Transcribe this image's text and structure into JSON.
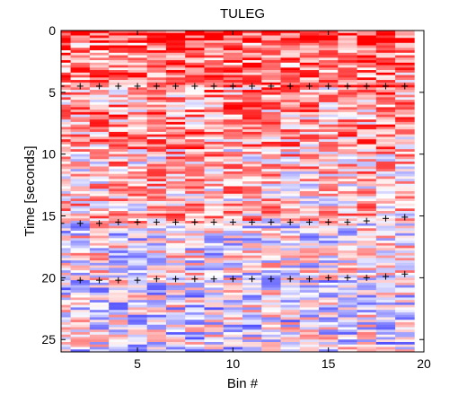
{
  "chart_data": {
    "type": "heatmap",
    "title": "TULEG",
    "xlabel": "Bin #",
    "ylabel": "Time [seconds]",
    "xlim": [
      1,
      20
    ],
    "ylim": [
      0,
      26
    ],
    "y_reversed": true,
    "x_ticks": [
      "5",
      "10",
      "15",
      "20"
    ],
    "x_tick_values": [
      5,
      10,
      15,
      20
    ],
    "y_ticks": [
      "0",
      "5",
      "10",
      "15",
      "20",
      "25"
    ],
    "y_tick_values": [
      0,
      5,
      10,
      15,
      20,
      25
    ],
    "colormap": {
      "negative": "#0000ff",
      "zero": "#ffffff",
      "positive": "#ff0000"
    },
    "bins": [
      1,
      2,
      3,
      4,
      5,
      6,
      7,
      8,
      9,
      10,
      11,
      12,
      13,
      14,
      15,
      16,
      17,
      18,
      19
    ],
    "column_mean_profile": [
      0.25,
      0.15,
      0.3,
      0.35,
      0.3,
      0.55,
      0.5,
      0.4,
      0.35,
      0.4,
      0.35,
      0.25,
      0.3,
      0.2,
      0.2,
      0.25,
      0.3,
      0.5,
      0.1
    ],
    "time_bands": [
      {
        "t0": 0,
        "t1": 4.5,
        "level": 0.7
      },
      {
        "t0": 4.5,
        "t1": 9.5,
        "level": 0.5
      },
      {
        "t0": 9.5,
        "t1": 15.5,
        "level": 0.3
      },
      {
        "t0": 15.5,
        "t1": 20.2,
        "level": 0.0
      },
      {
        "t0": 20.2,
        "t1": 26,
        "level": -0.1
      }
    ],
    "marker_series": [
      {
        "marker": "+",
        "x": [
          1,
          2,
          3,
          4,
          5,
          6,
          7,
          8,
          9,
          10,
          11,
          12,
          13,
          14,
          15,
          16,
          17,
          18,
          19
        ],
        "y": [
          4.5,
          4.5,
          4.5,
          4.5,
          4.5,
          4.5,
          4.5,
          4.5,
          4.5,
          4.5,
          4.5,
          4.5,
          4.5,
          4.5,
          4.5,
          4.5,
          4.5,
          4.5,
          4.5
        ]
      },
      {
        "marker": "+",
        "x": [
          1,
          2,
          3,
          4,
          5,
          6,
          7,
          8,
          9,
          10,
          11,
          12,
          13,
          14,
          15,
          16,
          17,
          18,
          19
        ],
        "y": [
          15.6,
          15.6,
          15.6,
          15.5,
          15.5,
          15.5,
          15.5,
          15.5,
          15.5,
          15.5,
          15.5,
          15.5,
          15.5,
          15.5,
          15.5,
          15.5,
          15.4,
          15.2,
          15.1
        ]
      },
      {
        "marker": "+",
        "x": [
          1,
          2,
          3,
          4,
          5,
          6,
          7,
          8,
          9,
          10,
          11,
          12,
          13,
          14,
          15,
          16,
          17,
          18,
          19
        ],
        "y": [
          20.2,
          20.2,
          20.2,
          20.2,
          20.2,
          20.1,
          20.1,
          20.1,
          20.1,
          20.1,
          20.1,
          20.1,
          20.1,
          20.1,
          20.0,
          20.0,
          20.0,
          19.9,
          19.7
        ]
      }
    ]
  }
}
